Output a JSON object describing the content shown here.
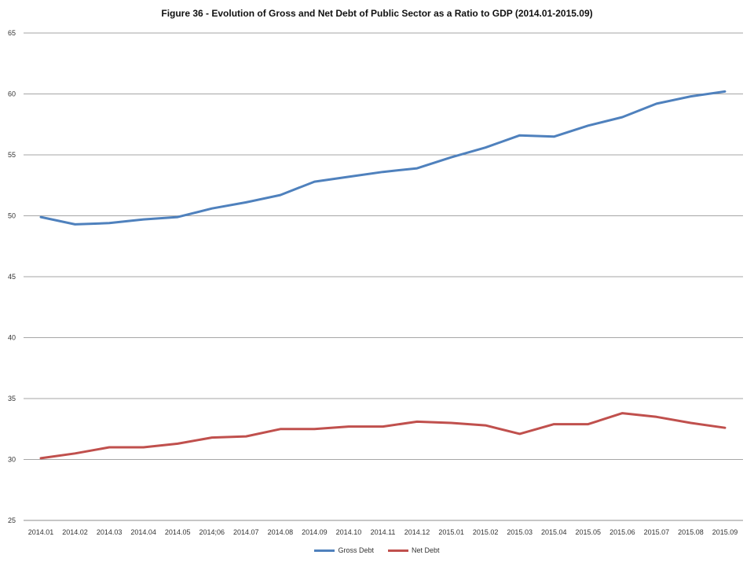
{
  "chart_data": {
    "type": "line",
    "title": "Figure 36 - Evolution of Gross and Net Debt of Public Sector as a Ratio to GDP (2014.01-2015.09)",
    "xlabel": "",
    "ylabel": "",
    "ylim": [
      25,
      65
    ],
    "yticks": [
      "25",
      "30",
      "35",
      "40",
      "45",
      "50",
      "55",
      "60",
      "65"
    ],
    "grid": true,
    "legend_position": "bottom",
    "categories": [
      "2014.01",
      "2014.02",
      "2014.03",
      "2014.04",
      "2014.05",
      "2014;06",
      "2014.07",
      "2014.08",
      "2014.09",
      "2014.10",
      "2014.11",
      "2014.12",
      "2015.01",
      "2015.02",
      "2015.03",
      "2015.04",
      "2015.05",
      "2015.06",
      "2015.07",
      "2015.08",
      "2015.09"
    ],
    "series": [
      {
        "name": "Gross Debt",
        "color": "#4f81bd",
        "values": [
          49.9,
          49.3,
          49.4,
          49.7,
          49.9,
          50.6,
          51.1,
          51.7,
          52.8,
          53.2,
          53.6,
          53.9,
          54.8,
          55.6,
          56.6,
          56.5,
          57.4,
          58.1,
          59.2,
          59.8,
          60.2
        ]
      },
      {
        "name": "Net Debt",
        "color": "#c0504d",
        "values": [
          30.1,
          30.5,
          31.0,
          31.0,
          31.3,
          31.8,
          31.9,
          32.5,
          32.5,
          32.7,
          32.7,
          33.1,
          33.0,
          32.8,
          32.1,
          32.9,
          32.9,
          33.8,
          33.5,
          33.0,
          32.6
        ]
      }
    ]
  }
}
